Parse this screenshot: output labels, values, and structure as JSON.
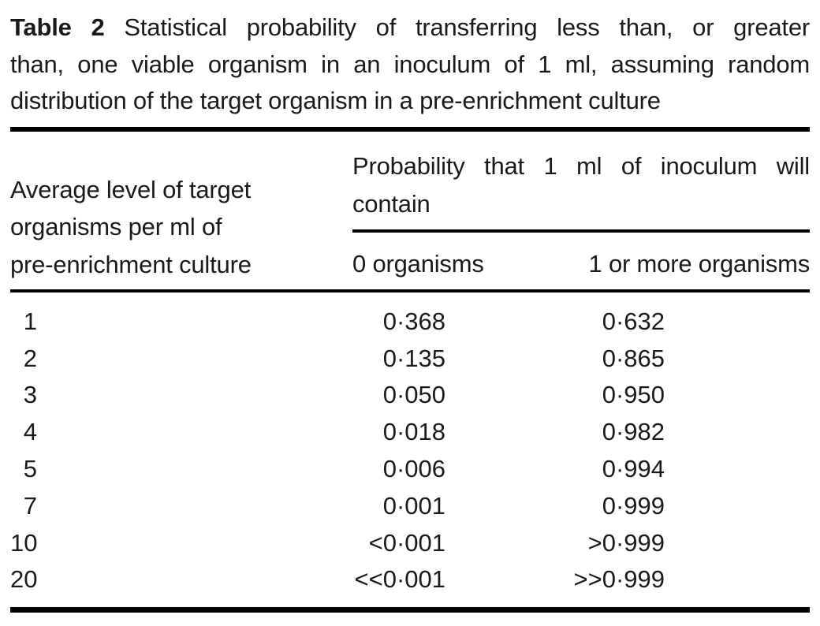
{
  "caption": {
    "label": "Table 2",
    "line1_rest": "Statistical probability of transferring less than, or greater",
    "line2": "than, one viable organism in an inoculum of 1 ml, assuming random",
    "line3": "distribution of the target organism in a pre-enrichment culture"
  },
  "header": {
    "row_label_line1": "Average level of target",
    "row_label_line2": "organisms per ml of",
    "row_label_line3": "pre-enrichment culture",
    "group_line1": "Probability that 1 ml of inoculum will",
    "group_line2": "contain",
    "col_zero": "0 organisms",
    "col_one_or_more": "1 or more organisms"
  },
  "rows": [
    {
      "level": "1",
      "p_zero": "0·368",
      "p_one_or_more": "0·632"
    },
    {
      "level": "2",
      "p_zero": "0·135",
      "p_one_or_more": "0·865"
    },
    {
      "level": "3",
      "p_zero": "0·050",
      "p_one_or_more": "0·950"
    },
    {
      "level": "4",
      "p_zero": "0·018",
      "p_one_or_more": "0·982"
    },
    {
      "level": "5",
      "p_zero": "0·006",
      "p_one_or_more": "0·994"
    },
    {
      "level": "7",
      "p_zero": "0·001",
      "p_one_or_more": "0·999"
    },
    {
      "level": "10",
      "p_zero": "<0·001",
      "p_one_or_more": ">0·999"
    },
    {
      "level": "20",
      "p_zero": "<<0·001",
      "p_one_or_more": ">>0·999"
    }
  ],
  "colors": {
    "text": "#1a1a1a",
    "rule": "#000000",
    "background": "#ffffff"
  }
}
